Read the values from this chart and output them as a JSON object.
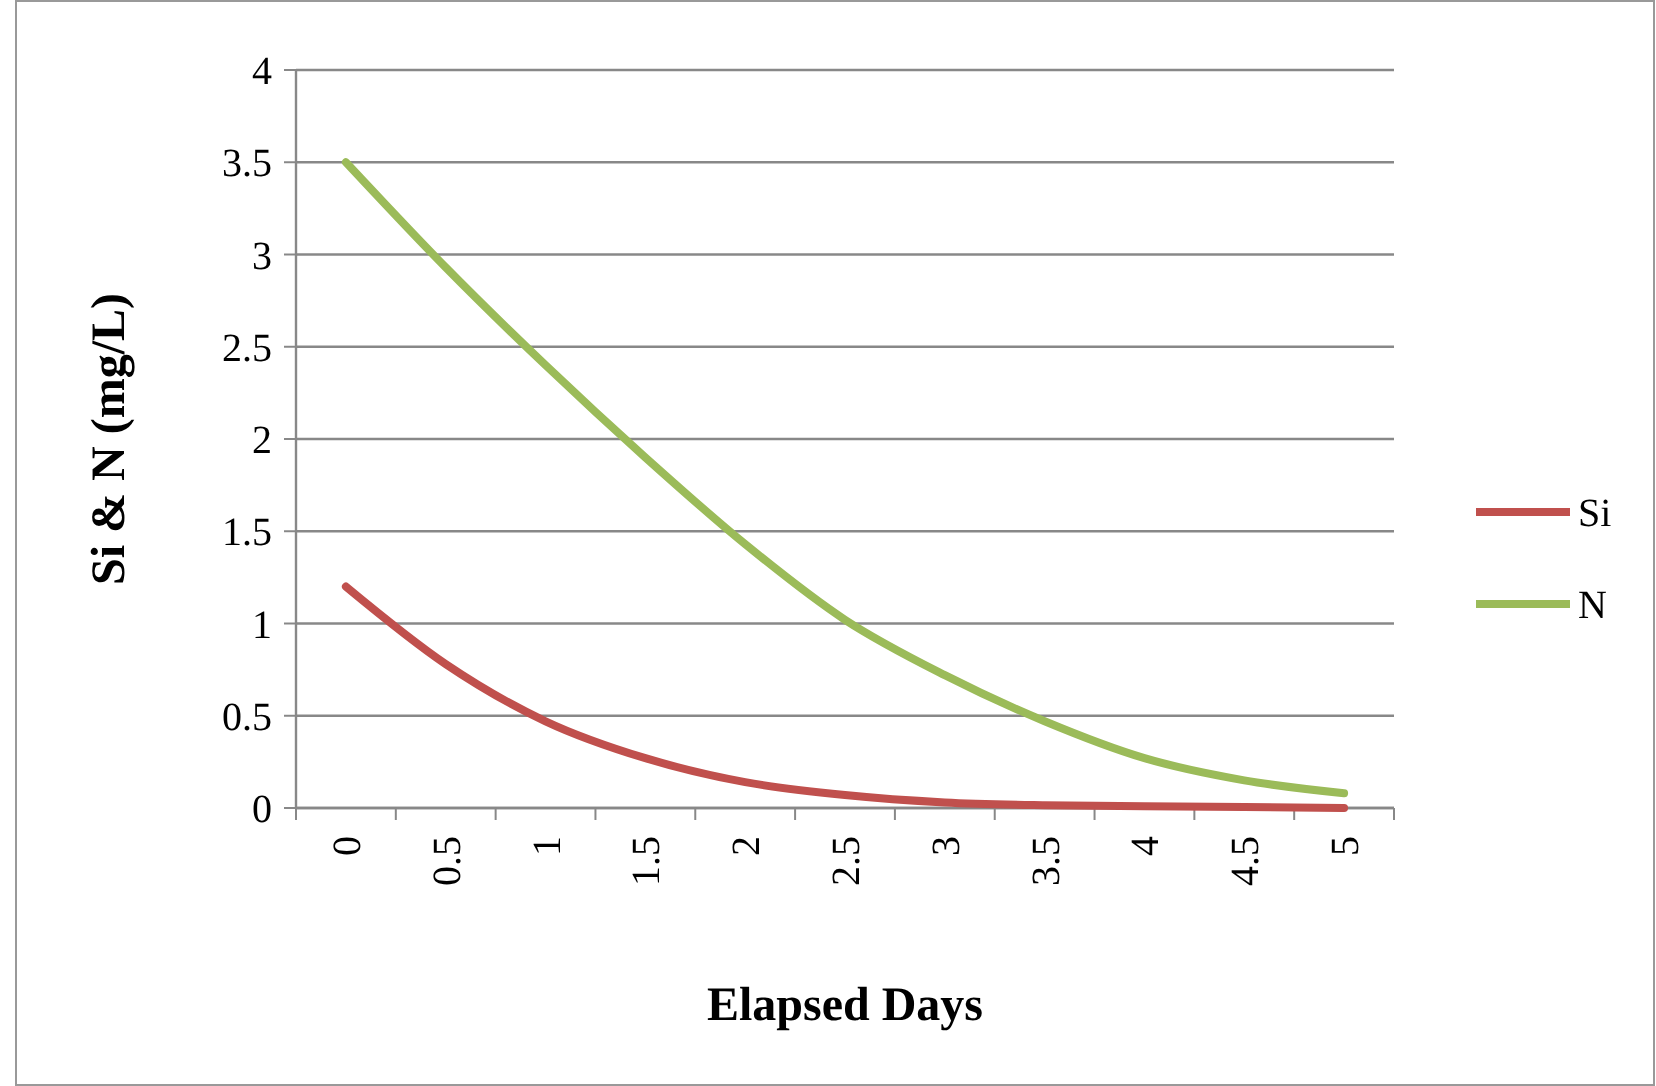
{
  "chart_data": {
    "type": "line",
    "xlabel": "Elapsed Days",
    "ylabel": "Si & N (mg/L)",
    "categories": [
      "0",
      "0.5",
      "1",
      "1.5",
      "2",
      "2.5",
      "3",
      "3.5",
      "4",
      "4.5",
      "5"
    ],
    "series": [
      {
        "name": "Si",
        "color": "#c0504d",
        "values": [
          1.2,
          0.78,
          0.47,
          0.27,
          0.14,
          0.07,
          0.03,
          0.015,
          0.01,
          0.005,
          0
        ]
      },
      {
        "name": "N",
        "color": "#9bbb59",
        "values": [
          3.5,
          2.93,
          2.4,
          1.9,
          1.43,
          1.02,
          0.72,
          0.47,
          0.27,
          0.15,
          0.08
        ]
      }
    ],
    "ylim": [
      0,
      4
    ],
    "yticks": [
      0,
      0.5,
      1,
      1.5,
      2,
      2.5,
      3,
      3.5,
      4
    ],
    "grid": "y",
    "legend": "right",
    "marker": "none",
    "line_style": "solid"
  }
}
